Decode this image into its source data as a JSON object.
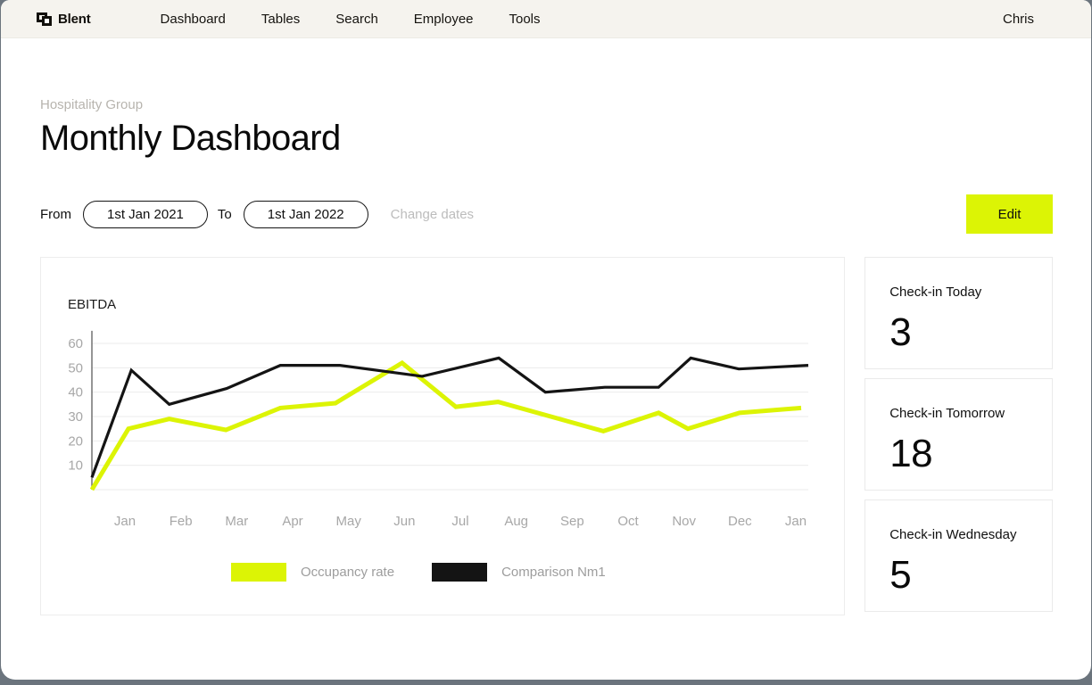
{
  "brand": {
    "name": "Blent"
  },
  "nav": {
    "items": [
      "Dashboard",
      "Tables",
      "Search",
      "Employee",
      "Tools"
    ],
    "user": "Chris"
  },
  "header": {
    "eyebrow": "Hospitality Group",
    "title": "Monthly Dashboard"
  },
  "date_filter": {
    "from_label": "From",
    "from_value": "1st Jan 2021",
    "to_label": "To",
    "to_value": "1st Jan 2022",
    "change_label": "Change dates",
    "edit_label": "Edit"
  },
  "colors": {
    "accent_lime": "#dcf405",
    "series_black": "#141414",
    "grid": "#ebebeb",
    "tick_text": "#a7a7a7",
    "topbar_bg": "#f5f3ee"
  },
  "chart_data": {
    "type": "line",
    "title": "EBITDA",
    "x_tick_labels": [
      "Jan",
      "Feb",
      "Mar",
      "Apr",
      "May",
      "Jun",
      "Jul",
      "Aug",
      "Sep",
      "Oct",
      "Nov",
      "Dec",
      "Jan"
    ],
    "y_ticks": [
      10,
      20,
      30,
      40,
      50,
      60
    ],
    "ylim": [
      0,
      63
    ],
    "grid": true,
    "legend_position": "bottom",
    "x_unit": "percent_of_axis",
    "series": [
      {
        "name": "Occupancy rate",
        "color": "#dcf405",
        "points": [
          [
            0,
            0
          ],
          [
            5.1,
            25
          ],
          [
            10.8,
            29
          ],
          [
            18.7,
            24.5
          ],
          [
            26.3,
            33.5
          ],
          [
            34,
            35.5
          ],
          [
            43.3,
            52
          ],
          [
            50.8,
            34
          ],
          [
            56.7,
            36
          ],
          [
            71.4,
            24
          ],
          [
            79.1,
            31.5
          ],
          [
            83.2,
            25
          ],
          [
            90.4,
            31.5
          ],
          [
            99,
            33.5
          ]
        ]
      },
      {
        "name": "Comparison Nm1",
        "color": "#141414",
        "points": [
          [
            0,
            5
          ],
          [
            5.5,
            49
          ],
          [
            10.8,
            35
          ],
          [
            18.8,
            41.5
          ],
          [
            26.3,
            51
          ],
          [
            34.6,
            51
          ],
          [
            46.1,
            46.5
          ],
          [
            56.8,
            54
          ],
          [
            63.3,
            40
          ],
          [
            71.6,
            42
          ],
          [
            79.1,
            42
          ],
          [
            83.6,
            54
          ],
          [
            90.3,
            49.5
          ],
          [
            100,
            51
          ]
        ]
      }
    ]
  },
  "stats": [
    {
      "label": "Check-in Today",
      "value": "3"
    },
    {
      "label": "Check-in Tomorrow",
      "value": "18"
    },
    {
      "label": "Check-in Wednesday",
      "value": "5"
    }
  ]
}
